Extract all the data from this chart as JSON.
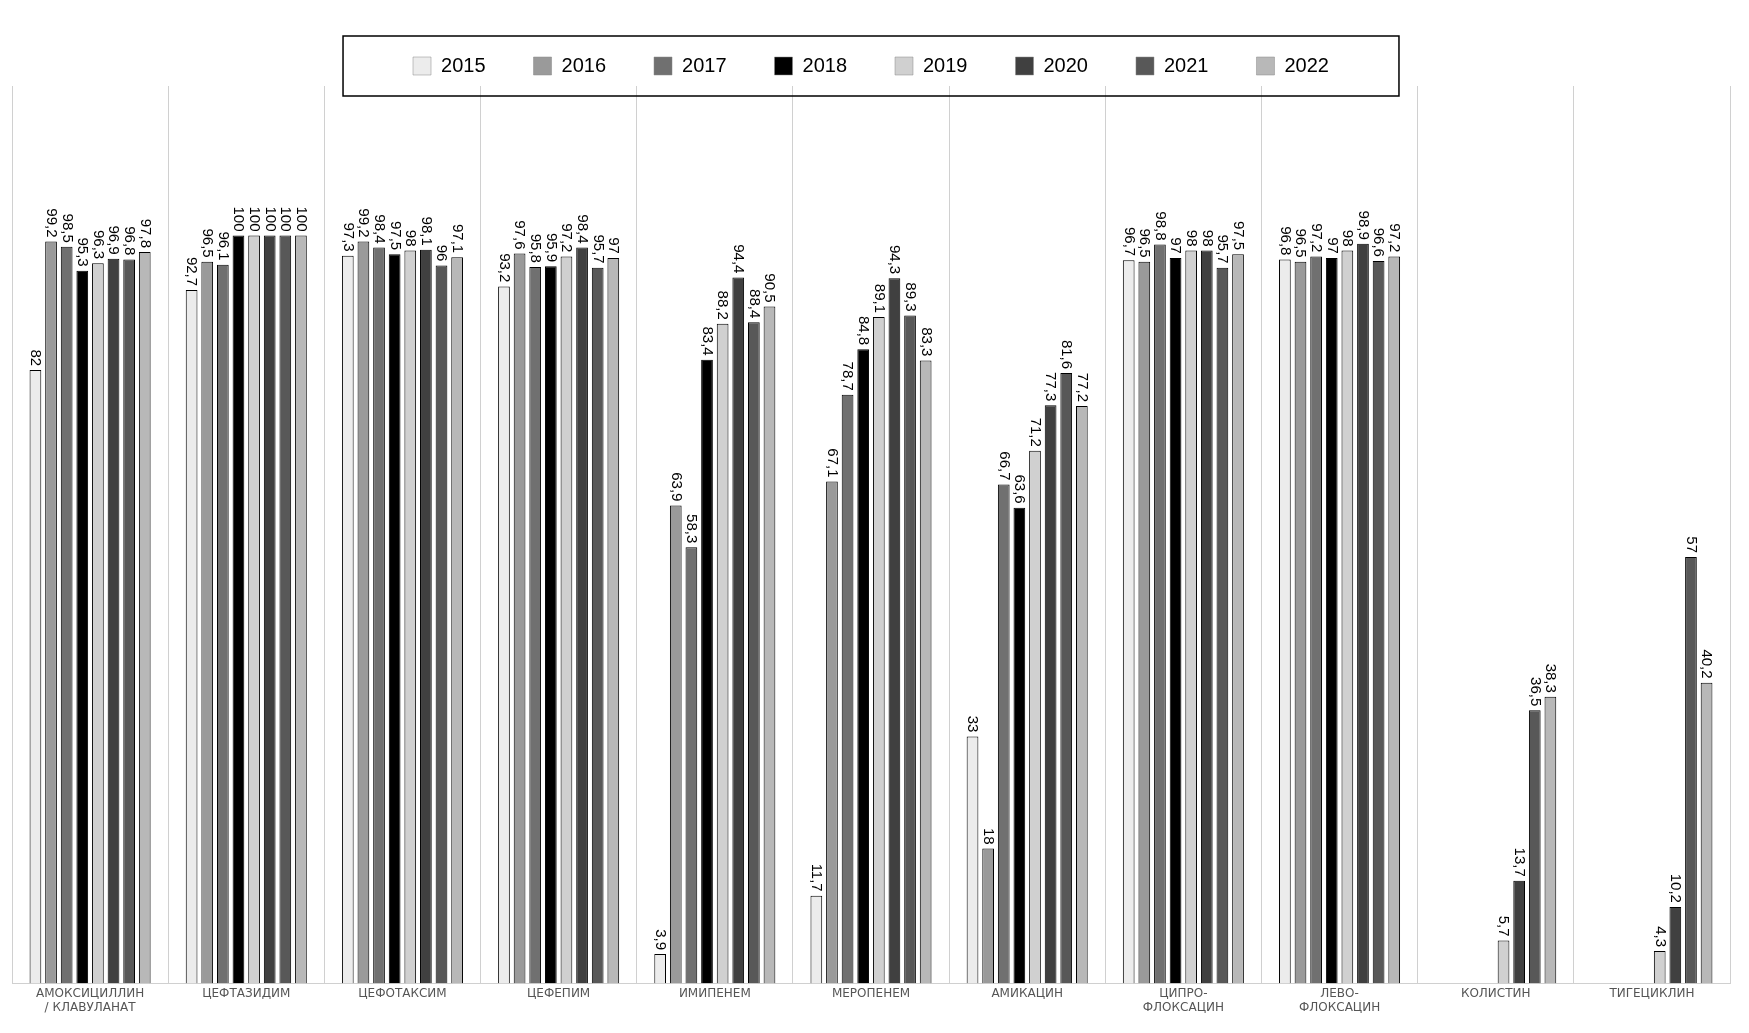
{
  "chart_data": {
    "type": "bar",
    "categories": [
      "АМОКСИЦИЛЛИН / КЛАВУЛАНАТ",
      "ЦЕФТАЗИДИМ",
      "ЦЕФОТАКСИМ",
      "ЦЕФЕПИМ",
      "ИМИПЕНЕМ",
      "МЕРОПЕНЕМ",
      "АМИКАЦИН",
      "ЦИПРО- ФЛОКСАЦИН",
      "ЛЕВО- ФЛОКСАЦИН",
      "КОЛИСТИН",
      "ТИГЕЦИКЛИН"
    ],
    "series": [
      {
        "name": "2015",
        "color": "#ececec",
        "values": [
          82,
          92.7,
          97.3,
          93.2,
          3.9,
          11.7,
          33,
          96.7,
          96.8,
          null,
          null
        ],
        "value_labels": [
          "82",
          "92,7",
          "97,3",
          "93,2",
          "3,9",
          "11,7",
          "33",
          "96,7",
          "96,8",
          null,
          null
        ]
      },
      {
        "name": "2016",
        "color": "#9a9a9a",
        "values": [
          99.2,
          96.5,
          99.2,
          97.6,
          63.9,
          67.1,
          18,
          96.5,
          96.5,
          null,
          null
        ],
        "value_labels": [
          "99,2",
          "96,5",
          "99,2",
          "97,6",
          "63,9",
          "67,1",
          "18",
          "96,5",
          "96,5",
          null,
          null
        ]
      },
      {
        "name": "2017",
        "color": "#707070",
        "values": [
          98.5,
          96.1,
          98.4,
          95.8,
          58.3,
          78.7,
          66.7,
          98.8,
          97.2,
          null,
          null
        ],
        "value_labels": [
          "98,5",
          "96,1",
          "98,4",
          "95,8",
          "58,3",
          "78,7",
          "66,7",
          "98,8",
          "97,2",
          null,
          null
        ]
      },
      {
        "name": "2018",
        "color": "#000000",
        "values": [
          95.3,
          100,
          97.5,
          95.9,
          83.4,
          84.8,
          63.6,
          97,
          97,
          null,
          null
        ],
        "value_labels": [
          "95,3",
          "100",
          "97,5",
          "95,9",
          "83,4",
          "84,8",
          "63,6",
          "97",
          "97",
          null,
          null
        ]
      },
      {
        "name": "2019",
        "color": "#d0d0d0",
        "values": [
          96.3,
          100,
          98,
          97.2,
          88.2,
          89.1,
          71.2,
          98,
          98,
          5.7,
          4.3
        ],
        "value_labels": [
          "96,3",
          "100",
          "98",
          "97,2",
          "88,2",
          "89,1",
          "71,2",
          "98",
          "98",
          "5,7",
          "4,3"
        ]
      },
      {
        "name": "2020",
        "color": "#404040",
        "values": [
          96.9,
          100,
          98.1,
          98.4,
          94.4,
          94.3,
          77.3,
          98,
          98.9,
          13.7,
          10.2
        ],
        "value_labels": [
          "96,9",
          "100",
          "98,1",
          "98,4",
          "94,4",
          "94,3",
          "77,3",
          "98",
          "98,9",
          "13,7",
          "10,2"
        ]
      },
      {
        "name": "2021",
        "color": "#585858",
        "values": [
          96.8,
          100,
          96,
          95.7,
          88.4,
          89.3,
          81.6,
          95.7,
          96.6,
          36.5,
          57
        ],
        "value_labels": [
          "96,8",
          "100",
          "96",
          "95,7",
          "88,4",
          "89,3",
          "81,6",
          "95,7",
          "96,6",
          "36,5",
          "57"
        ]
      },
      {
        "name": "2022",
        "color": "#b8b8b8",
        "values": [
          97.8,
          100,
          97.1,
          97,
          90.5,
          83.3,
          77.2,
          97.5,
          97.2,
          38.3,
          40.2
        ],
        "value_labels": [
          "97,8",
          "100",
          "97,1",
          "97",
          "90,5",
          "83,3",
          "77,2",
          "97,5",
          "97,2",
          "38,3",
          "40,2"
        ]
      }
    ],
    "grid": "x",
    "legend": "top"
  }
}
